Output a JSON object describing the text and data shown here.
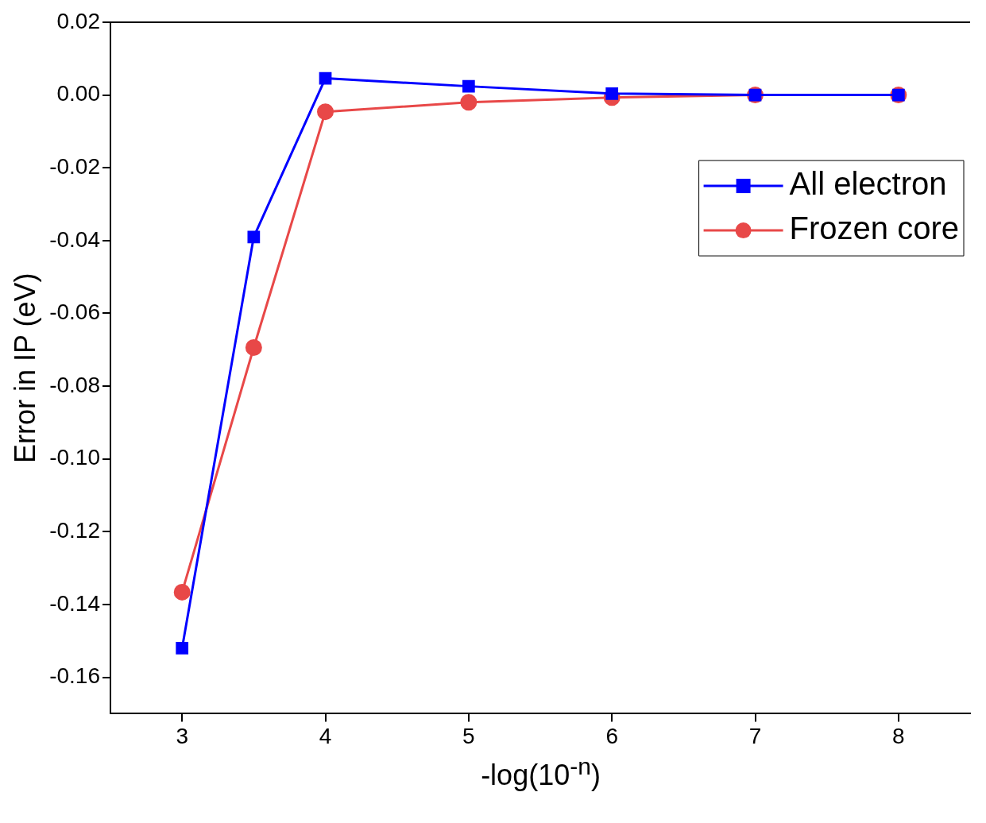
{
  "chart_data": {
    "type": "line",
    "xlabel": "-log(10$^{-n}$)",
    "ylabel": "Error in IP (eV)",
    "x": [
      3,
      3.5,
      4,
      5,
      6,
      7,
      8
    ],
    "series": [
      {
        "name": "All electron",
        "color": "#0000ff",
        "marker": "square",
        "values": [
          -0.152,
          -0.039,
          0.0046,
          0.0024,
          0.0004,
          0,
          0
        ]
      },
      {
        "name": "Frozen core",
        "color": "#e84848",
        "marker": "circle",
        "values": [
          -0.1366,
          -0.0694,
          -0.0046,
          -0.002,
          -0.0007,
          0,
          0
        ]
      }
    ],
    "xlim": [
      2.5,
      8.5
    ],
    "xticks": [
      3,
      4,
      5,
      6,
      7,
      8
    ],
    "ylim": [
      -0.17,
      0.02
    ],
    "yticks": [
      -0.16,
      -0.14,
      -0.12,
      {
        "value": -0.1,
        "label": "-0.10"
      },
      -0.08,
      -0.06,
      -0.04,
      -0.02,
      {
        "value": 0,
        "label": "0.00"
      },
      0.02
    ],
    "grid": false,
    "legend": "right",
    "line_style": "solid"
  }
}
